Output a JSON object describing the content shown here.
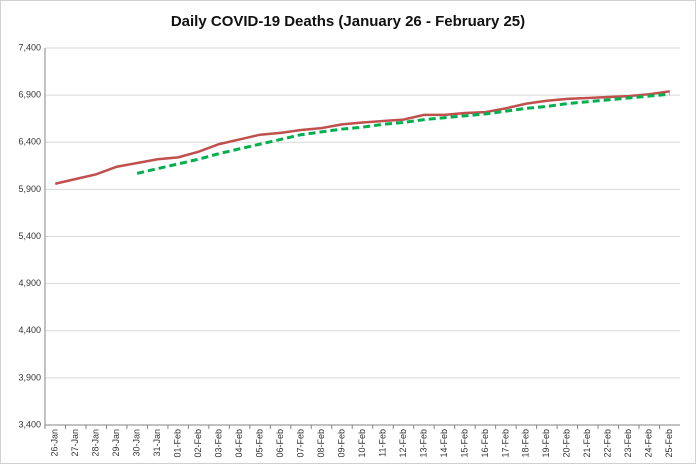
{
  "chart_data": {
    "type": "line",
    "title": "Daily COVID-19 Deaths (January 26 - February 25)",
    "categories": [
      "26-Jan",
      "27-Jan",
      "28-Jan",
      "29-Jan",
      "30-Jan",
      "31-Jan",
      "01-Feb",
      "02-Feb",
      "03-Feb",
      "04-Feb",
      "05-Feb",
      "06-Feb",
      "07-Feb",
      "08-Feb",
      "09-Feb",
      "10-Feb",
      "11-Feb",
      "12-Feb",
      "13-Feb",
      "14-Feb",
      "15-Feb",
      "16-Feb",
      "17-Feb",
      "18-Feb",
      "19-Feb",
      "20-Feb",
      "21-Feb",
      "22-Feb",
      "23-Feb",
      "24-Feb",
      "25-Feb"
    ],
    "series": [
      {
        "color": "#c0504d",
        "dashed": false,
        "values": [
          5960,
          6010,
          6060,
          6140,
          6180,
          6220,
          6240,
          6300,
          6380,
          6430,
          6480,
          6500,
          6530,
          6550,
          6590,
          6610,
          6625,
          6640,
          6690,
          6690,
          6710,
          6720,
          6760,
          6810,
          6840,
          6860,
          6870,
          6880,
          6890,
          6910,
          6940
        ]
      },
      {
        "color": "#00b050",
        "dashed": true,
        "values": [
          null,
          null,
          null,
          null,
          6070,
          6120,
          6170,
          6220,
          6280,
          6330,
          6380,
          6430,
          6480,
          6510,
          6540,
          6560,
          6590,
          6610,
          6640,
          6660,
          6680,
          6700,
          6730,
          6760,
          6780,
          6810,
          6830,
          6850,
          6870,
          6890,
          6910
        ]
      }
    ],
    "ylim": [
      3400,
      7400
    ],
    "yticks": [
      {
        "value": 3400,
        "label": "3,400"
      },
      {
        "value": 3900,
        "label": "3,900"
      },
      {
        "value": 4400,
        "label": "4,400"
      },
      {
        "value": 4900,
        "label": "4,900"
      },
      {
        "value": 5400,
        "label": "5,400"
      },
      {
        "value": 5900,
        "label": "5,900"
      },
      {
        "value": 6400,
        "label": "6,400"
      },
      {
        "value": 6900,
        "label": "6,900"
      },
      {
        "value": 7400,
        "label": "7,400"
      }
    ],
    "grid": true
  }
}
